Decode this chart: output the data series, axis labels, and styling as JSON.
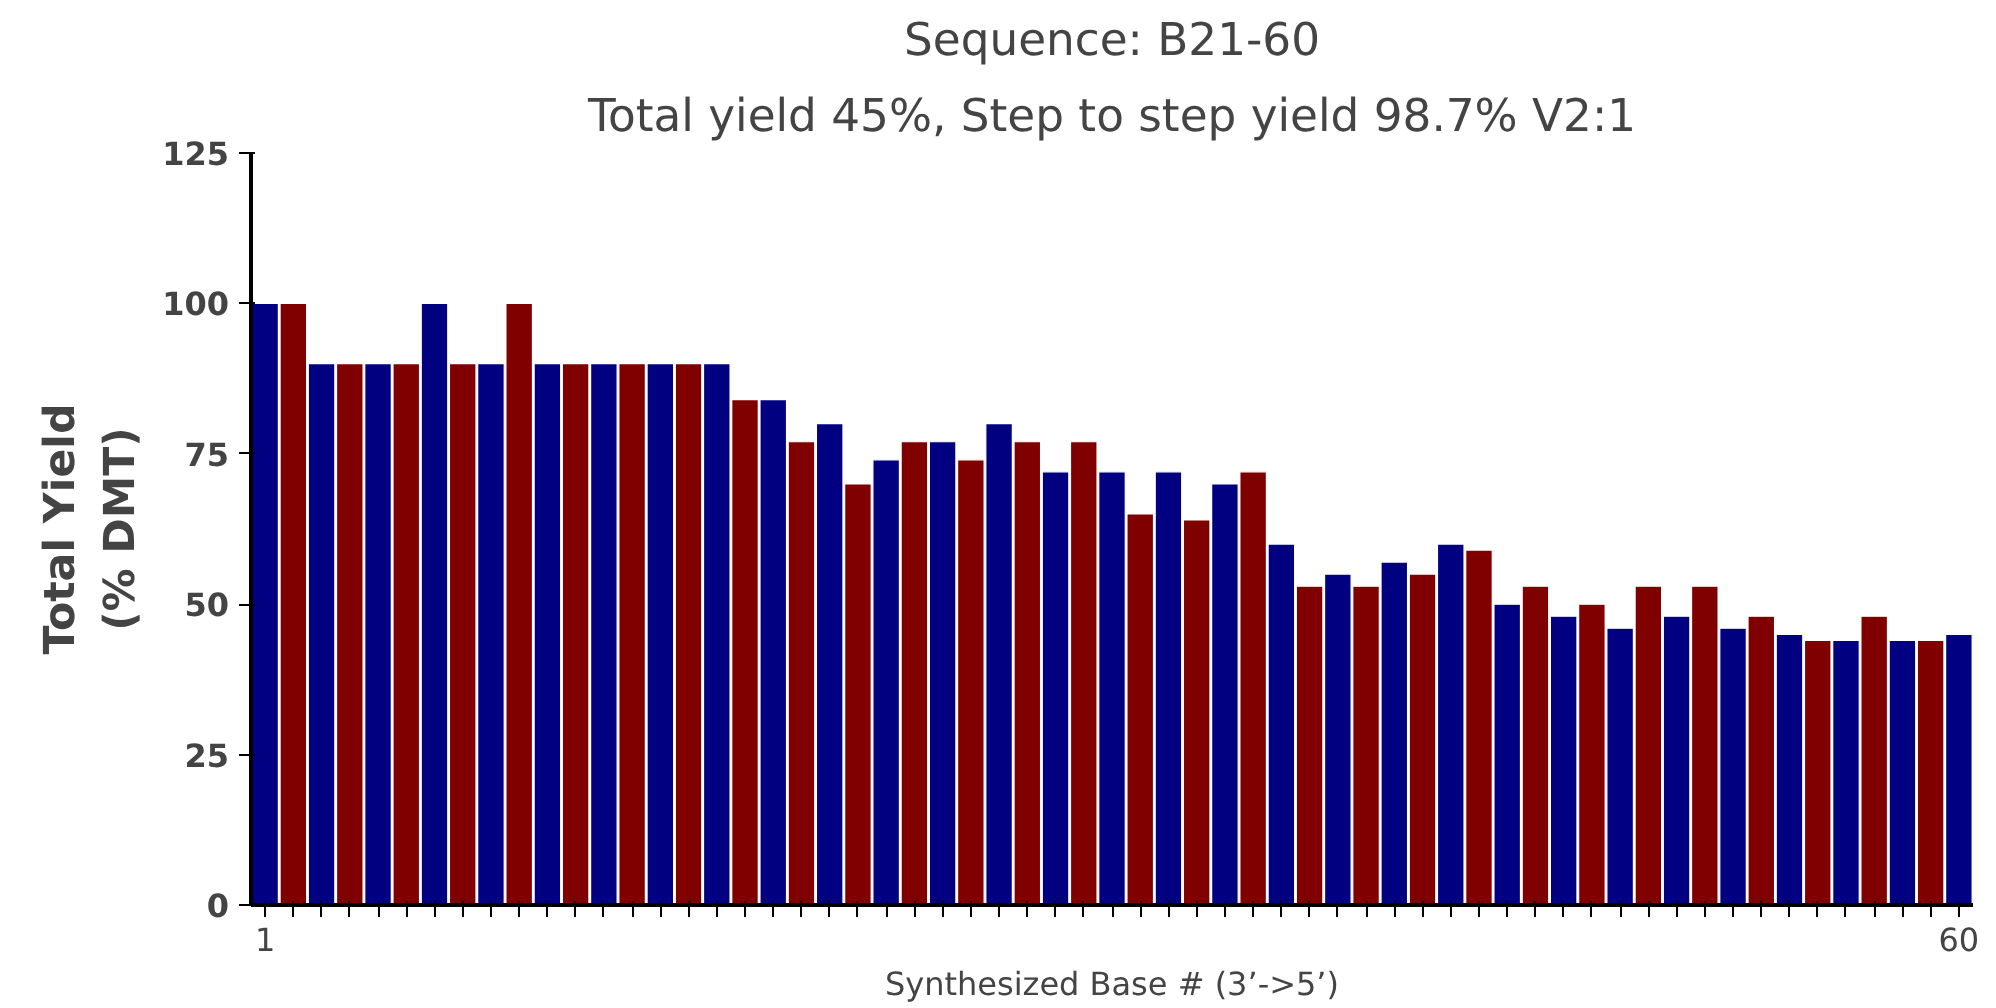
{
  "chart_data": {
    "type": "bar",
    "title": "Sequence: B21-60",
    "subtitle": "Total yield 45%, Step to step yield 98.7% V2:1",
    "xlabel": "Synthesized Base # (3’->5’)",
    "ylabel": "Total Yield\n(% DMT)",
    "categories": [
      "1",
      null,
      null,
      null,
      null,
      null,
      null,
      null,
      null,
      null,
      null,
      null,
      null,
      null,
      null,
      null,
      null,
      null,
      null,
      null,
      null,
      null,
      null,
      null,
      null,
      null,
      null,
      null,
      null,
      null,
      null,
      null,
      null,
      null,
      null,
      null,
      null,
      null,
      null,
      null,
      null,
      null,
      null,
      null,
      null,
      null,
      null,
      null,
      null,
      null,
      null,
      null,
      null,
      null,
      null,
      null,
      null,
      null,
      null,
      null,
      "60"
    ],
    "values": [
      100,
      100,
      90,
      90,
      90,
      90,
      100,
      90,
      90,
      100,
      90,
      90,
      90,
      90,
      90,
      90,
      90,
      84,
      84,
      77,
      80,
      70,
      74,
      77,
      77,
      74,
      80,
      77,
      72,
      77,
      72,
      65,
      72,
      64,
      70,
      72,
      60,
      53,
      55,
      53,
      57,
      55,
      60,
      59,
      50,
      53,
      48,
      50,
      46,
      53,
      48,
      53,
      46,
      48,
      45,
      44,
      44,
      48,
      44,
      44,
      45
    ],
    "colors": [
      "#000080",
      "#800000",
      "#000080",
      "#800000",
      "#000080",
      "#800000",
      "#000080",
      "#800000",
      "#000080",
      "#800000",
      "#000080",
      "#800000",
      "#000080",
      "#800000",
      "#000080",
      "#800000",
      "#000080",
      "#800000",
      "#000080",
      "#800000",
      "#000080",
      "#800000",
      "#000080",
      "#800000",
      "#000080",
      "#800000",
      "#000080",
      "#800000",
      "#000080",
      "#800000",
      "#000080",
      "#800000",
      "#000080",
      "#800000",
      "#000080",
      "#800000",
      "#000080",
      "#800000",
      "#000080",
      "#800000",
      "#000080",
      "#800000",
      "#000080",
      "#800000",
      "#000080",
      "#800000",
      "#000080",
      "#800000",
      "#000080",
      "#800000",
      "#000080",
      "#800000",
      "#000080",
      "#800000",
      "#000080",
      "#800000",
      "#000080",
      "#800000",
      "#000080",
      "#800000",
      "#000080"
    ],
    "ylim": [
      0,
      125
    ],
    "yticks": [
      0,
      25,
      50,
      75,
      100,
      125
    ],
    "grid": false
  }
}
